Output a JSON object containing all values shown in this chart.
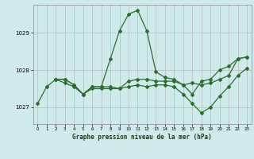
{
  "title": "Graphe pression niveau de la mer (hPa)",
  "background_color": "#ceeaea",
  "line_color": "#2d6e2d",
  "grid_color": "#b0b0b0",
  "xlim": [
    -0.5,
    23.5
  ],
  "ylim": [
    1026.55,
    1029.75
  ],
  "yticks": [
    1027,
    1028,
    1029
  ],
  "xticks": [
    0,
    1,
    2,
    3,
    4,
    5,
    6,
    7,
    8,
    9,
    10,
    11,
    12,
    13,
    14,
    15,
    16,
    17,
    18,
    19,
    20,
    21,
    22,
    23
  ],
  "series": [
    {
      "x": [
        0,
        1,
        2,
        3,
        4,
        5,
        6,
        7,
        8,
        9,
        10,
        11,
        12,
        13,
        14,
        15,
        16,
        17,
        18,
        19,
        20,
        21,
        22,
        23
      ],
      "y": [
        1027.1,
        1027.55,
        1027.75,
        1027.75,
        1027.6,
        1027.35,
        1027.55,
        1027.55,
        1028.3,
        1029.05,
        1029.5,
        1029.6,
        1029.05,
        1027.95,
        1027.8,
        1027.75,
        1027.6,
        1027.35,
        1027.7,
        1027.75,
        1028.0,
        1028.1,
        1028.3,
        1028.35
      ]
    },
    {
      "x": [
        2,
        3,
        4,
        5,
        6,
        7,
        8,
        9,
        10,
        11,
        12,
        13,
        14,
        15,
        16,
        17,
        18,
        19,
        20,
        21,
        22,
        23
      ],
      "y": [
        1027.75,
        1027.75,
        1027.6,
        1027.35,
        1027.55,
        1027.55,
        1027.55,
        1027.5,
        1027.7,
        1027.75,
        1027.75,
        1027.7,
        1027.7,
        1027.7,
        1027.6,
        1027.65,
        1027.6,
        1027.65,
        1027.75,
        1027.85,
        1028.3,
        1028.35
      ]
    },
    {
      "x": [
        2,
        3,
        4,
        5,
        6,
        7,
        8,
        9,
        10,
        11,
        12,
        13,
        14,
        15,
        16,
        17,
        18,
        19,
        20,
        21,
        22,
        23
      ],
      "y": [
        1027.75,
        1027.65,
        1027.55,
        1027.35,
        1027.5,
        1027.5,
        1027.5,
        1027.5,
        1027.55,
        1027.6,
        1027.55,
        1027.6,
        1027.6,
        1027.55,
        1027.35,
        1027.1,
        1026.85,
        1027.0,
        1027.3,
        1027.55,
        1027.85,
        1028.05
      ]
    }
  ]
}
